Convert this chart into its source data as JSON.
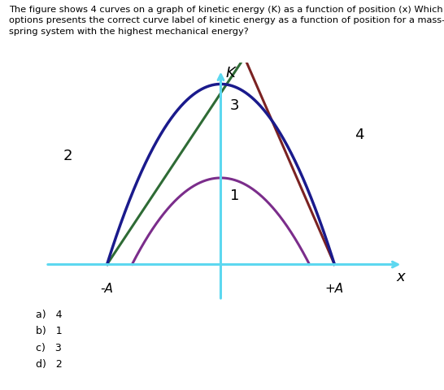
{
  "title_text": "The figure shows 4 curves on a graph of kinetic energy (K) as a function of position (x) Which of the\noptions presents the correct curve label of kinetic energy as a function of position for a mass-\nspring system with the highest mechanical energy?",
  "K_label": "K",
  "x_label": "x",
  "neg_A_label": "-A",
  "pos_A_label": "+A",
  "curve1_label": "1",
  "curve2_label": "2",
  "curve3_label": "3",
  "curve4_label": "4",
  "axis_color": "#5DD8F0",
  "curve1_color": "#7B2D8B",
  "curve2_green_color": "#2E6B35",
  "curve_brown_color": "#7B2222",
  "curve3_color": "#1A1A8C",
  "curve4_green_color": "#2E6B35",
  "answers": [
    "a)   4",
    "b)   1",
    "c)   3",
    "d)   2"
  ],
  "A": 1.0,
  "figsize": [
    5.46,
    4.8
  ],
  "dpi": 100
}
